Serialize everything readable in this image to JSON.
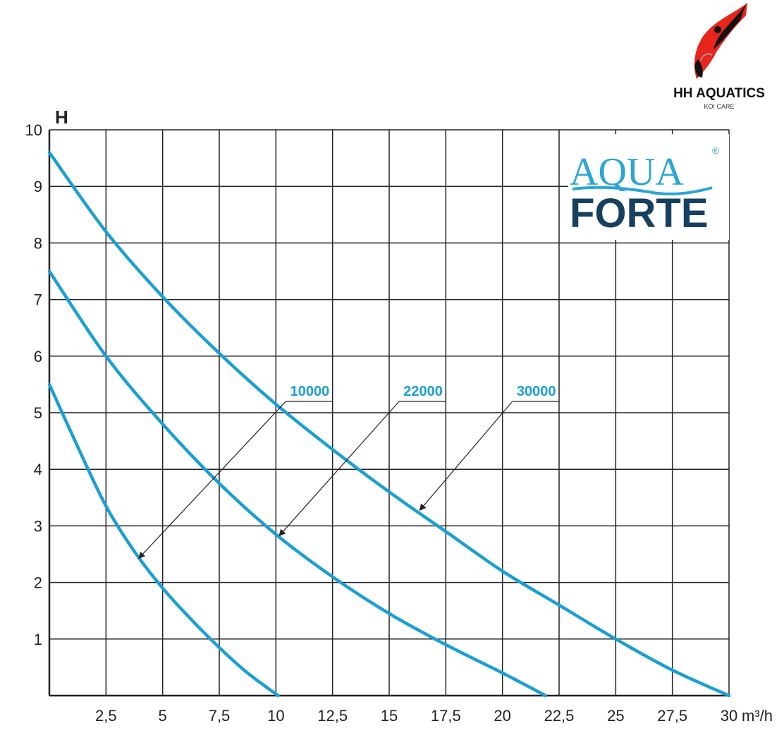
{
  "brand": {
    "name": "HH AQUATICS",
    "tagline": "KOI CARE"
  },
  "logo": {
    "line1": "AQUA",
    "line2": "FORTE",
    "registered": "®"
  },
  "colors": {
    "curve": "#1a9fd4",
    "grid": "#222222",
    "forte": "#17405f",
    "aqua": "#2aa5d6"
  },
  "chart_data": {
    "type": "line",
    "title": "",
    "xlabel": "m³/h",
    "ylabel": "H",
    "xlim": [
      0,
      30
    ],
    "ylim": [
      0,
      10
    ],
    "x_ticks": [
      "2,5",
      "5",
      "7,5",
      "10",
      "12,5",
      "15",
      "17,5",
      "20",
      "22,5",
      "25",
      "27,5",
      "30"
    ],
    "y_ticks": [
      "1",
      "2",
      "3",
      "4",
      "5",
      "6",
      "7",
      "8",
      "9",
      "10"
    ],
    "grid": true,
    "legend": "inline labels with leader arrows",
    "series": [
      {
        "name": "10000",
        "x": [
          0,
          1.25,
          2.5,
          3.75,
          5,
          6.25,
          7.5,
          8.75,
          10.1
        ],
        "y": [
          5.5,
          4.4,
          3.35,
          2.55,
          1.9,
          1.35,
          0.85,
          0.4,
          0
        ]
      },
      {
        "name": "22000",
        "x": [
          0,
          2.5,
          5,
          7.5,
          10,
          12.5,
          15,
          17.5,
          20,
          21.9
        ],
        "y": [
          7.5,
          6.0,
          4.8,
          3.75,
          2.85,
          2.1,
          1.45,
          0.9,
          0.4,
          0
        ]
      },
      {
        "name": "30000",
        "x": [
          0,
          2.5,
          5,
          7.5,
          10,
          12.5,
          15,
          17.5,
          20,
          22.5,
          25,
          27.5,
          30
        ],
        "y": [
          9.6,
          8.2,
          7.05,
          6.05,
          5.15,
          4.35,
          3.6,
          2.9,
          2.2,
          1.6,
          1.0,
          0.45,
          0
        ]
      }
    ]
  }
}
